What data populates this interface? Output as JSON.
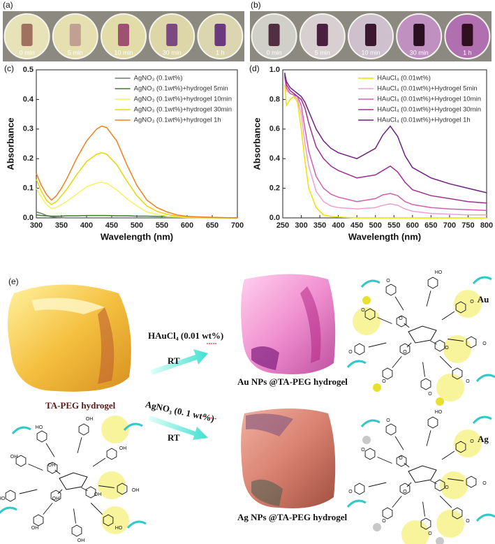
{
  "photos": [
    {
      "panel": "(a)",
      "labels": [
        "0 min",
        "5 min",
        "10 min",
        "30 min",
        "1 h"
      ]
    },
    {
      "panel": "(b)",
      "labels": [
        "0 min",
        "5 min",
        "10 min",
        "30 min",
        "1 h"
      ]
    }
  ],
  "chart_data": [
    {
      "type": "line",
      "panel": "(c)",
      "x_label": "Wavelength (nm)",
      "y_label": "Absorbance",
      "xlim": [
        300,
        700
      ],
      "xticks": [
        300,
        350,
        400,
        450,
        500,
        550,
        600,
        650,
        700
      ],
      "ylim": [
        0,
        0.5
      ],
      "yticks": [
        {
          "value": 0,
          "label": "0.0"
        },
        {
          "value": 0.1,
          "label": "0.1"
        },
        {
          "value": 0.2,
          "label": "0.2"
        },
        {
          "value": 0.3,
          "label": "0.3"
        },
        {
          "value": 0.4,
          "label": "0.4"
        },
        {
          "value": 0.5,
          "label": "0.5"
        }
      ],
      "legend": "upper right",
      "x": [
        300,
        310,
        320,
        330,
        340,
        350,
        360,
        380,
        400,
        420,
        430,
        440,
        460,
        480,
        500,
        520,
        540,
        560,
        580,
        600,
        650,
        700
      ],
      "series": [
        {
          "name": "AgNO₃ (0.1wt%)",
          "color": "#6f7a6f",
          "values": [
            0.02,
            0.015,
            0.008,
            0.004,
            0.002,
            0.001,
            0,
            0,
            0,
            0,
            0,
            0,
            0,
            0,
            0,
            0,
            0,
            0,
            0,
            0,
            0,
            0
          ]
        },
        {
          "name": "AgNO₃ (0.1wt%)+hydrogel 5min",
          "color": "#3d7a2a",
          "values": [
            0.01,
            0.008,
            0.007,
            0.006,
            0.006,
            0.006,
            0.007,
            0.007,
            0.008,
            0.008,
            0.008,
            0.008,
            0.007,
            0.007,
            0.006,
            0.006,
            0.005,
            0.005,
            0.004,
            0.003,
            0.001,
            0
          ]
        },
        {
          "name": "AgNO₃ (0.1wt%)+hydrogel 10min",
          "color": "#f2f268",
          "values": [
            0.1,
            0.07,
            0.045,
            0.032,
            0.035,
            0.045,
            0.055,
            0.08,
            0.105,
            0.118,
            0.12,
            0.117,
            0.095,
            0.065,
            0.04,
            0.02,
            0.012,
            0.006,
            0.003,
            0.001,
            0,
            0
          ]
        },
        {
          "name": "AgNO₃ (0.1wt%)+hydrogel 30min",
          "color": "#e6d800",
          "values": [
            0.13,
            0.09,
            0.06,
            0.045,
            0.055,
            0.075,
            0.095,
            0.145,
            0.19,
            0.215,
            0.22,
            0.215,
            0.18,
            0.125,
            0.075,
            0.04,
            0.022,
            0.012,
            0.006,
            0.003,
            0.001,
            0
          ]
        },
        {
          "name": "AgNO₃ (0.1wt%)+hydrogel 1h",
          "color": "#f08020",
          "values": [
            0.15,
            0.11,
            0.08,
            0.06,
            0.075,
            0.1,
            0.13,
            0.2,
            0.26,
            0.3,
            0.31,
            0.305,
            0.26,
            0.18,
            0.11,
            0.06,
            0.035,
            0.02,
            0.01,
            0.005,
            0.002,
            0
          ]
        }
      ]
    },
    {
      "type": "line",
      "panel": "(d)",
      "x_label": "Wavelength (nm)",
      "y_label": "Absorbance",
      "xlim": [
        250,
        800
      ],
      "xticks": [
        250,
        300,
        350,
        400,
        450,
        500,
        550,
        600,
        650,
        700,
        750,
        800
      ],
      "ylim": [
        0,
        1
      ],
      "yticks": [
        {
          "value": 0,
          "label": "0.0"
        },
        {
          "value": 0.2,
          "label": "0.2"
        },
        {
          "value": 0.4,
          "label": "0.4"
        },
        {
          "value": 0.6,
          "label": "0.6"
        },
        {
          "value": 0.8,
          "label": "0.8"
        },
        {
          "value": 1,
          "label": "1.0"
        }
      ],
      "legend": "upper right",
      "x": [
        255,
        260,
        270,
        280,
        290,
        300,
        310,
        320,
        340,
        360,
        380,
        400,
        450,
        500,
        520,
        540,
        560,
        580,
        600,
        650,
        700,
        750,
        800
      ],
      "series": [
        {
          "name": "HAuCl₄ (0.01wt%)",
          "color": "#f0e000",
          "values": [
            0.9,
            0.76,
            0.8,
            0.82,
            0.78,
            0.6,
            0.38,
            0.2,
            0.07,
            0.02,
            0.01,
            0.005,
            0,
            0,
            0,
            0,
            0,
            0,
            0,
            0,
            0,
            0,
            0
          ]
        },
        {
          "name": "HAuCl₄ (0.01wt%)+Hydrogel 5min",
          "color": "#f0a0d0",
          "values": [
            0.95,
            0.86,
            0.84,
            0.83,
            0.8,
            0.7,
            0.5,
            0.35,
            0.18,
            0.11,
            0.08,
            0.07,
            0.06,
            0.07,
            0.085,
            0.095,
            0.085,
            0.06,
            0.045,
            0.03,
            0.025,
            0.02,
            0.02
          ]
        },
        {
          "name": "HAuCl₄ (0.01wt%)+Hydrogel 10min",
          "color": "#d060b0",
          "values": [
            0.96,
            0.88,
            0.84,
            0.83,
            0.82,
            0.76,
            0.6,
            0.45,
            0.28,
            0.2,
            0.16,
            0.14,
            0.11,
            0.13,
            0.155,
            0.165,
            0.15,
            0.11,
            0.09,
            0.07,
            0.06,
            0.055,
            0.05
          ]
        },
        {
          "name": "HAuCl₄ (0.01wt%)+Hydrogel 30min",
          "color": "#a03090",
          "values": [
            0.97,
            0.9,
            0.86,
            0.84,
            0.82,
            0.8,
            0.74,
            0.64,
            0.48,
            0.4,
            0.35,
            0.32,
            0.27,
            0.29,
            0.32,
            0.35,
            0.31,
            0.24,
            0.19,
            0.15,
            0.13,
            0.11,
            0.1
          ]
        },
        {
          "name": "HAuCl₄ (0.01wt%)+Hydrogel 1h",
          "color": "#702080",
          "values": [
            0.98,
            0.92,
            0.88,
            0.86,
            0.84,
            0.82,
            0.78,
            0.72,
            0.6,
            0.52,
            0.47,
            0.44,
            0.4,
            0.47,
            0.56,
            0.62,
            0.55,
            0.42,
            0.34,
            0.27,
            0.23,
            0.2,
            0.17
          ]
        }
      ]
    }
  ],
  "scheme": {
    "panel": "(e)",
    "start_label": "TA-PEG hydrogel",
    "au_reagent": "HAuCl₄ (0.01 wt%)",
    "au_condition": "RT",
    "au_product": "Au NPs @TA-PEG hydrogel",
    "au_tag": "Au",
    "ag_reagent": "AgNO₃ (0. 1 wt%)",
    "ag_condition": "RT",
    "ag_product": "Ag NPs @TA-PEG hydrogel",
    "ag_tag": "Ag",
    "molecules": [
      {
        "atoms": [
          "OH",
          "HO",
          "OH",
          "OH",
          "OH",
          "HO",
          "OH",
          "OH",
          "HO",
          "OH",
          "OH",
          "OH"
        ]
      },
      {
        "atoms": [
          "O",
          "O",
          "HO",
          "O",
          "O",
          "O",
          "O",
          "O",
          "O",
          "O",
          "O",
          "O"
        ]
      },
      {
        "atoms": [
          "O",
          "O",
          "HO",
          "O",
          "O",
          "O",
          "O",
          "O",
          "O",
          "O",
          "O",
          "O"
        ]
      }
    ]
  }
}
